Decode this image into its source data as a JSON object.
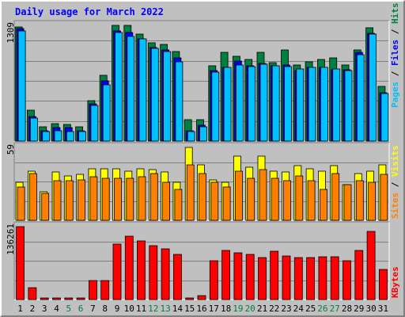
{
  "chart_data": {
    "type": "bar",
    "title": "Daily usage for March 2022",
    "categories": [
      "1",
      "2",
      "3",
      "4",
      "5",
      "6",
      "7",
      "8",
      "9",
      "10",
      "11",
      "12",
      "13",
      "14",
      "15",
      "16",
      "17",
      "18",
      "19",
      "20",
      "21",
      "22",
      "23",
      "24",
      "25",
      "26",
      "27",
      "28",
      "29",
      "30",
      "31"
    ],
    "weekend_days": [
      "5",
      "6",
      "12",
      "13",
      "19",
      "20",
      "26",
      "27"
    ],
    "panels": [
      {
        "name": "requests",
        "max_label": "1309",
        "ymax": 1309,
        "legend": [
          "Pages",
          "Files",
          "Hits"
        ],
        "series": [
          {
            "name": "Hits",
            "color": "#008040",
            "values": [
              1290,
              350,
              160,
              200,
              190,
              160,
              460,
              740,
              1310,
              1310,
              1210,
              1110,
              1090,
              1010,
              240,
              240,
              850,
              1000,
              960,
              920,
              1000,
              890,
              1030,
              860,
              900,
              920,
              940,
              860,
              1030,
              1280,
              620
            ]
          },
          {
            "name": "Files",
            "color": "#0000ff",
            "values": [
              1270,
              280,
              120,
              150,
              150,
              120,
              420,
              680,
              1250,
              1230,
              1160,
              1060,
              1030,
              940,
              120,
              180,
              800,
              830,
              910,
              850,
              880,
              850,
              860,
              800,
              830,
              830,
              810,
              810,
              1000,
              1220,
              550
            ]
          },
          {
            "name": "Pages",
            "color": "#00c0ff",
            "values": [
              1250,
              260,
              110,
              120,
              110,
              110,
              400,
              640,
              1230,
              1180,
              1160,
              1050,
              1010,
              900,
              110,
              160,
              780,
              830,
              860,
              840,
              870,
              850,
              840,
              820,
              830,
              830,
              820,
              800,
              980,
              1210,
              540
            ]
          }
        ]
      },
      {
        "name": "visits",
        "max_label": "59",
        "ymax": 59,
        "legend": [
          "Sites",
          "Visits"
        ],
        "series": [
          {
            "name": "Visits",
            "color": "#ffff00",
            "values": [
              31,
              40,
              23,
              39,
              36,
              37,
              42,
              42,
              42,
              40,
              42,
              41,
              39,
              31,
              59,
              45,
              33,
              31,
              52,
              43,
              52,
              40,
              39,
              44,
              42,
              40,
              44,
              29,
              38,
              40,
              45
            ]
          },
          {
            "name": "Sites",
            "color": "#ff8000",
            "values": [
              27,
              38,
              22,
              32,
              32,
              33,
              35,
              34,
              34,
              34,
              35,
              38,
              31,
              25,
              45,
              38,
              31,
              27,
              40,
              34,
              41,
              34,
              32,
              36,
              32,
              25,
              38,
              29,
              32,
              31,
              37
            ]
          }
        ]
      },
      {
        "name": "kbytes",
        "max_label": "136261",
        "ymax": 136261,
        "legend": [
          "KBytes"
        ],
        "series": [
          {
            "name": "KBytes",
            "color": "#ff0000",
            "values": [
              136261,
              22000,
              3000,
              3000,
              3000,
              3000,
              35000,
              35000,
              104000,
              118000,
              110000,
              101000,
              95000,
              85000,
              3000,
              7000,
              73000,
              92000,
              88000,
              84000,
              79000,
              90000,
              82000,
              78000,
              79000,
              80000,
              80000,
              72000,
              92000,
              128000,
              56000
            ]
          }
        ]
      }
    ]
  },
  "colors": {
    "panel_bg": "#c0c0c0",
    "grid": "#808080",
    "title": "#0000ff",
    "weekday_label": "#000000",
    "weekend_label": "#008040"
  }
}
